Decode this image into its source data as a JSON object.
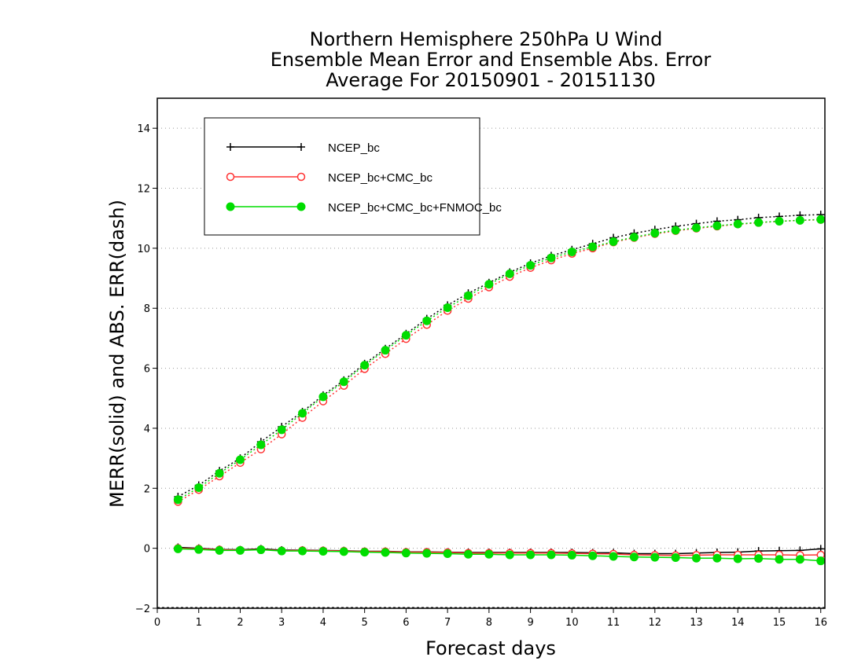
{
  "chart_data": {
    "type": "line",
    "title": [
      "Northern Hemisphere 250hPa U Wind",
      "Ensemble Mean Error and Ensemble Abs. Error",
      "Average For 20150901 - 20151130"
    ],
    "xlabel": "Forecast days",
    "ylabel": "MERR(solid) and ABS. ERR(dash)",
    "xlim": [
      0,
      16.1
    ],
    "ylim": [
      -2,
      15
    ],
    "xticks": [
      0,
      1,
      2,
      3,
      4,
      5,
      6,
      7,
      8,
      9,
      10,
      11,
      12,
      13,
      14,
      15,
      16
    ],
    "yticks": [
      -2,
      0,
      2,
      4,
      6,
      8,
      10,
      12,
      14
    ],
    "grid": "horizontal dotted",
    "legend_position": "top-left",
    "x": [
      0.5,
      1,
      1.5,
      2,
      2.5,
      3,
      3.5,
      4,
      4.5,
      5,
      5.5,
      6,
      6.5,
      7,
      7.5,
      8,
      8.5,
      9,
      9.5,
      10,
      10.5,
      11,
      11.5,
      12,
      12.5,
      13,
      13.5,
      14,
      14.5,
      15,
      15.5,
      16
    ],
    "series": [
      {
        "name": "NCEP_bc",
        "color": "#000000",
        "marker": "plus",
        "abs_err": [
          1.72,
          2.1,
          2.58,
          3.0,
          3.55,
          4.05,
          4.55,
          5.1,
          5.6,
          6.15,
          6.65,
          7.15,
          7.65,
          8.1,
          8.5,
          8.85,
          9.2,
          9.5,
          9.75,
          9.95,
          10.15,
          10.35,
          10.5,
          10.62,
          10.73,
          10.82,
          10.9,
          10.95,
          11.02,
          11.06,
          11.1,
          11.12
        ],
        "mean_err": [
          0.03,
          0.0,
          -0.04,
          -0.05,
          -0.02,
          -0.06,
          -0.06,
          -0.07,
          -0.08,
          -0.1,
          -0.1,
          -0.12,
          -0.12,
          -0.13,
          -0.14,
          -0.14,
          -0.14,
          -0.14,
          -0.14,
          -0.14,
          -0.15,
          -0.15,
          -0.18,
          -0.18,
          -0.18,
          -0.16,
          -0.14,
          -0.13,
          -0.09,
          -0.08,
          -0.07,
          -0.02
        ]
      },
      {
        "name": "NCEP_bc+CMC_bc",
        "color": "#ff3333",
        "marker": "open-circle",
        "abs_err": [
          1.55,
          1.95,
          2.4,
          2.85,
          3.3,
          3.8,
          4.35,
          4.9,
          5.42,
          5.98,
          6.48,
          6.98,
          7.45,
          7.92,
          8.32,
          8.7,
          9.05,
          9.35,
          9.6,
          9.82,
          10.0,
          10.2,
          10.35,
          10.48,
          10.58,
          10.66,
          10.73,
          10.8,
          10.85,
          10.9,
          10.93,
          10.95
        ],
        "mean_err": [
          0.0,
          -0.02,
          -0.05,
          -0.06,
          -0.04,
          -0.08,
          -0.07,
          -0.08,
          -0.09,
          -0.11,
          -0.11,
          -0.13,
          -0.13,
          -0.14,
          -0.16,
          -0.16,
          -0.16,
          -0.16,
          -0.16,
          -0.17,
          -0.18,
          -0.19,
          -0.22,
          -0.23,
          -0.24,
          -0.23,
          -0.22,
          -0.22,
          -0.22,
          -0.22,
          -0.23,
          -0.22
        ]
      },
      {
        "name": "NCEP_bc+CMC_bc+FNMOC_bc",
        "color": "#00dd00",
        "marker": "filled-circle",
        "abs_err": [
          1.62,
          2.02,
          2.5,
          2.95,
          3.45,
          3.95,
          4.5,
          5.05,
          5.55,
          6.1,
          6.6,
          7.1,
          7.58,
          8.02,
          8.42,
          8.8,
          9.15,
          9.43,
          9.68,
          9.88,
          10.05,
          10.22,
          10.37,
          10.5,
          10.6,
          10.68,
          10.75,
          10.81,
          10.86,
          10.9,
          10.93,
          10.96
        ],
        "mean_err": [
          -0.02,
          -0.04,
          -0.07,
          -0.07,
          -0.05,
          -0.09,
          -0.09,
          -0.1,
          -0.11,
          -0.13,
          -0.14,
          -0.16,
          -0.17,
          -0.18,
          -0.2,
          -0.2,
          -0.22,
          -0.22,
          -0.22,
          -0.23,
          -0.25,
          -0.27,
          -0.29,
          -0.3,
          -0.31,
          -0.33,
          -0.33,
          -0.35,
          -0.34,
          -0.37,
          -0.37,
          -0.42
        ]
      }
    ]
  }
}
